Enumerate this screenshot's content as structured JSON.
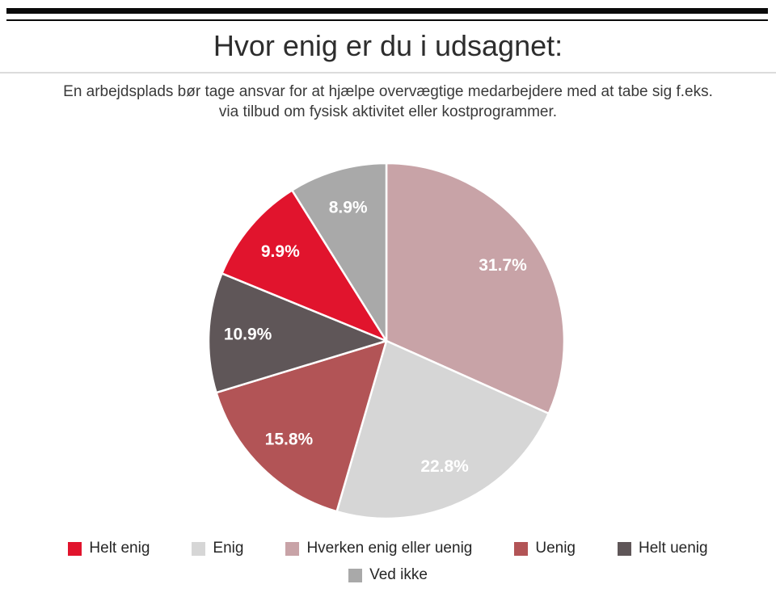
{
  "page": {
    "title": "Hvor enig er du i udsagnet:",
    "subtitle_line1": "En arbejdsplads bør tage ansvar for at hjælpe overvægtige medarbejdere med at tabe sig f.eks.",
    "subtitle_line2": "via tilbud om fysisk aktivitet eller kostprogrammer."
  },
  "chart_data": {
    "type": "pie",
    "title": "Hvor enig er du i udsagnet:",
    "subtitle": "En arbejdsplads bør tage ansvar for at hjælpe overvægtige medarbejdere med at tabe sig f.eks. via tilbud om fysisk aktivitet eller kostprogrammer.",
    "unit": "%",
    "start_angle_deg": 0,
    "direction": "clockwise",
    "value_label_color": "#ffffff",
    "slices": [
      {
        "label": "Hverken enig eller uenig",
        "value": 31.7,
        "display": "31.7%",
        "color": "#c8a3a7"
      },
      {
        "label": "Enig",
        "value": 22.8,
        "display": "22.8%",
        "color": "#d6d6d6"
      },
      {
        "label": "Uenig",
        "value": 15.8,
        "display": "15.8%",
        "color": "#b25456"
      },
      {
        "label": "Helt uenig",
        "value": 10.9,
        "display": "10.9%",
        "color": "#5f5658"
      },
      {
        "label": "Helt enig",
        "value": 9.9,
        "display": "9.9%",
        "color": "#e1142d"
      },
      {
        "label": "Ved ikke",
        "value": 8.9,
        "display": "8.9%",
        "color": "#a9a9a9"
      }
    ],
    "legend": {
      "position": "bottom",
      "rows": [
        [
          "Helt enig",
          "Enig",
          "Hverken enig eller uenig",
          "Uenig",
          "Helt uenig"
        ],
        [
          "Ved ikke"
        ]
      ]
    }
  }
}
